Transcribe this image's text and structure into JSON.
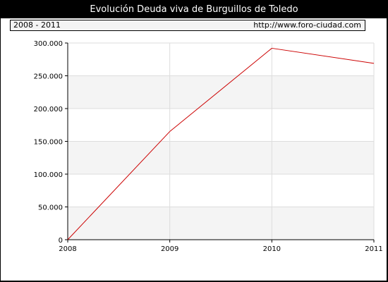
{
  "header": {
    "title": "Evolución Deuda viva de Burguillos de Toledo",
    "range_label": "2008 - 2011",
    "url": "http://www.foro-ciudad.com"
  },
  "colors": {
    "line": "#cc0000",
    "band": "#f4f4f4",
    "grid": "#dddddd",
    "frame": "#000000"
  },
  "chart_data": {
    "type": "line",
    "title": "Evolución Deuda viva de Burguillos de Toledo",
    "subtitle": "2008 - 2011",
    "x": [
      "2008",
      "2009",
      "2010",
      "2011"
    ],
    "series": [
      {
        "values": [
          0,
          165000,
          292000,
          269000
        ]
      }
    ],
    "ylim": [
      0,
      300000
    ],
    "y_ticks": [
      0,
      50000,
      100000,
      150000,
      200000,
      250000,
      300000
    ],
    "y_tick_labels": [
      "0",
      "50.000",
      "100.000",
      "150.000",
      "200.000",
      "250.000",
      "300.000"
    ],
    "x_tick_labels": [
      "2008",
      "2009",
      "2010",
      "2011"
    ],
    "grid": true,
    "legend": "none",
    "xlabel": "",
    "ylabel": ""
  }
}
